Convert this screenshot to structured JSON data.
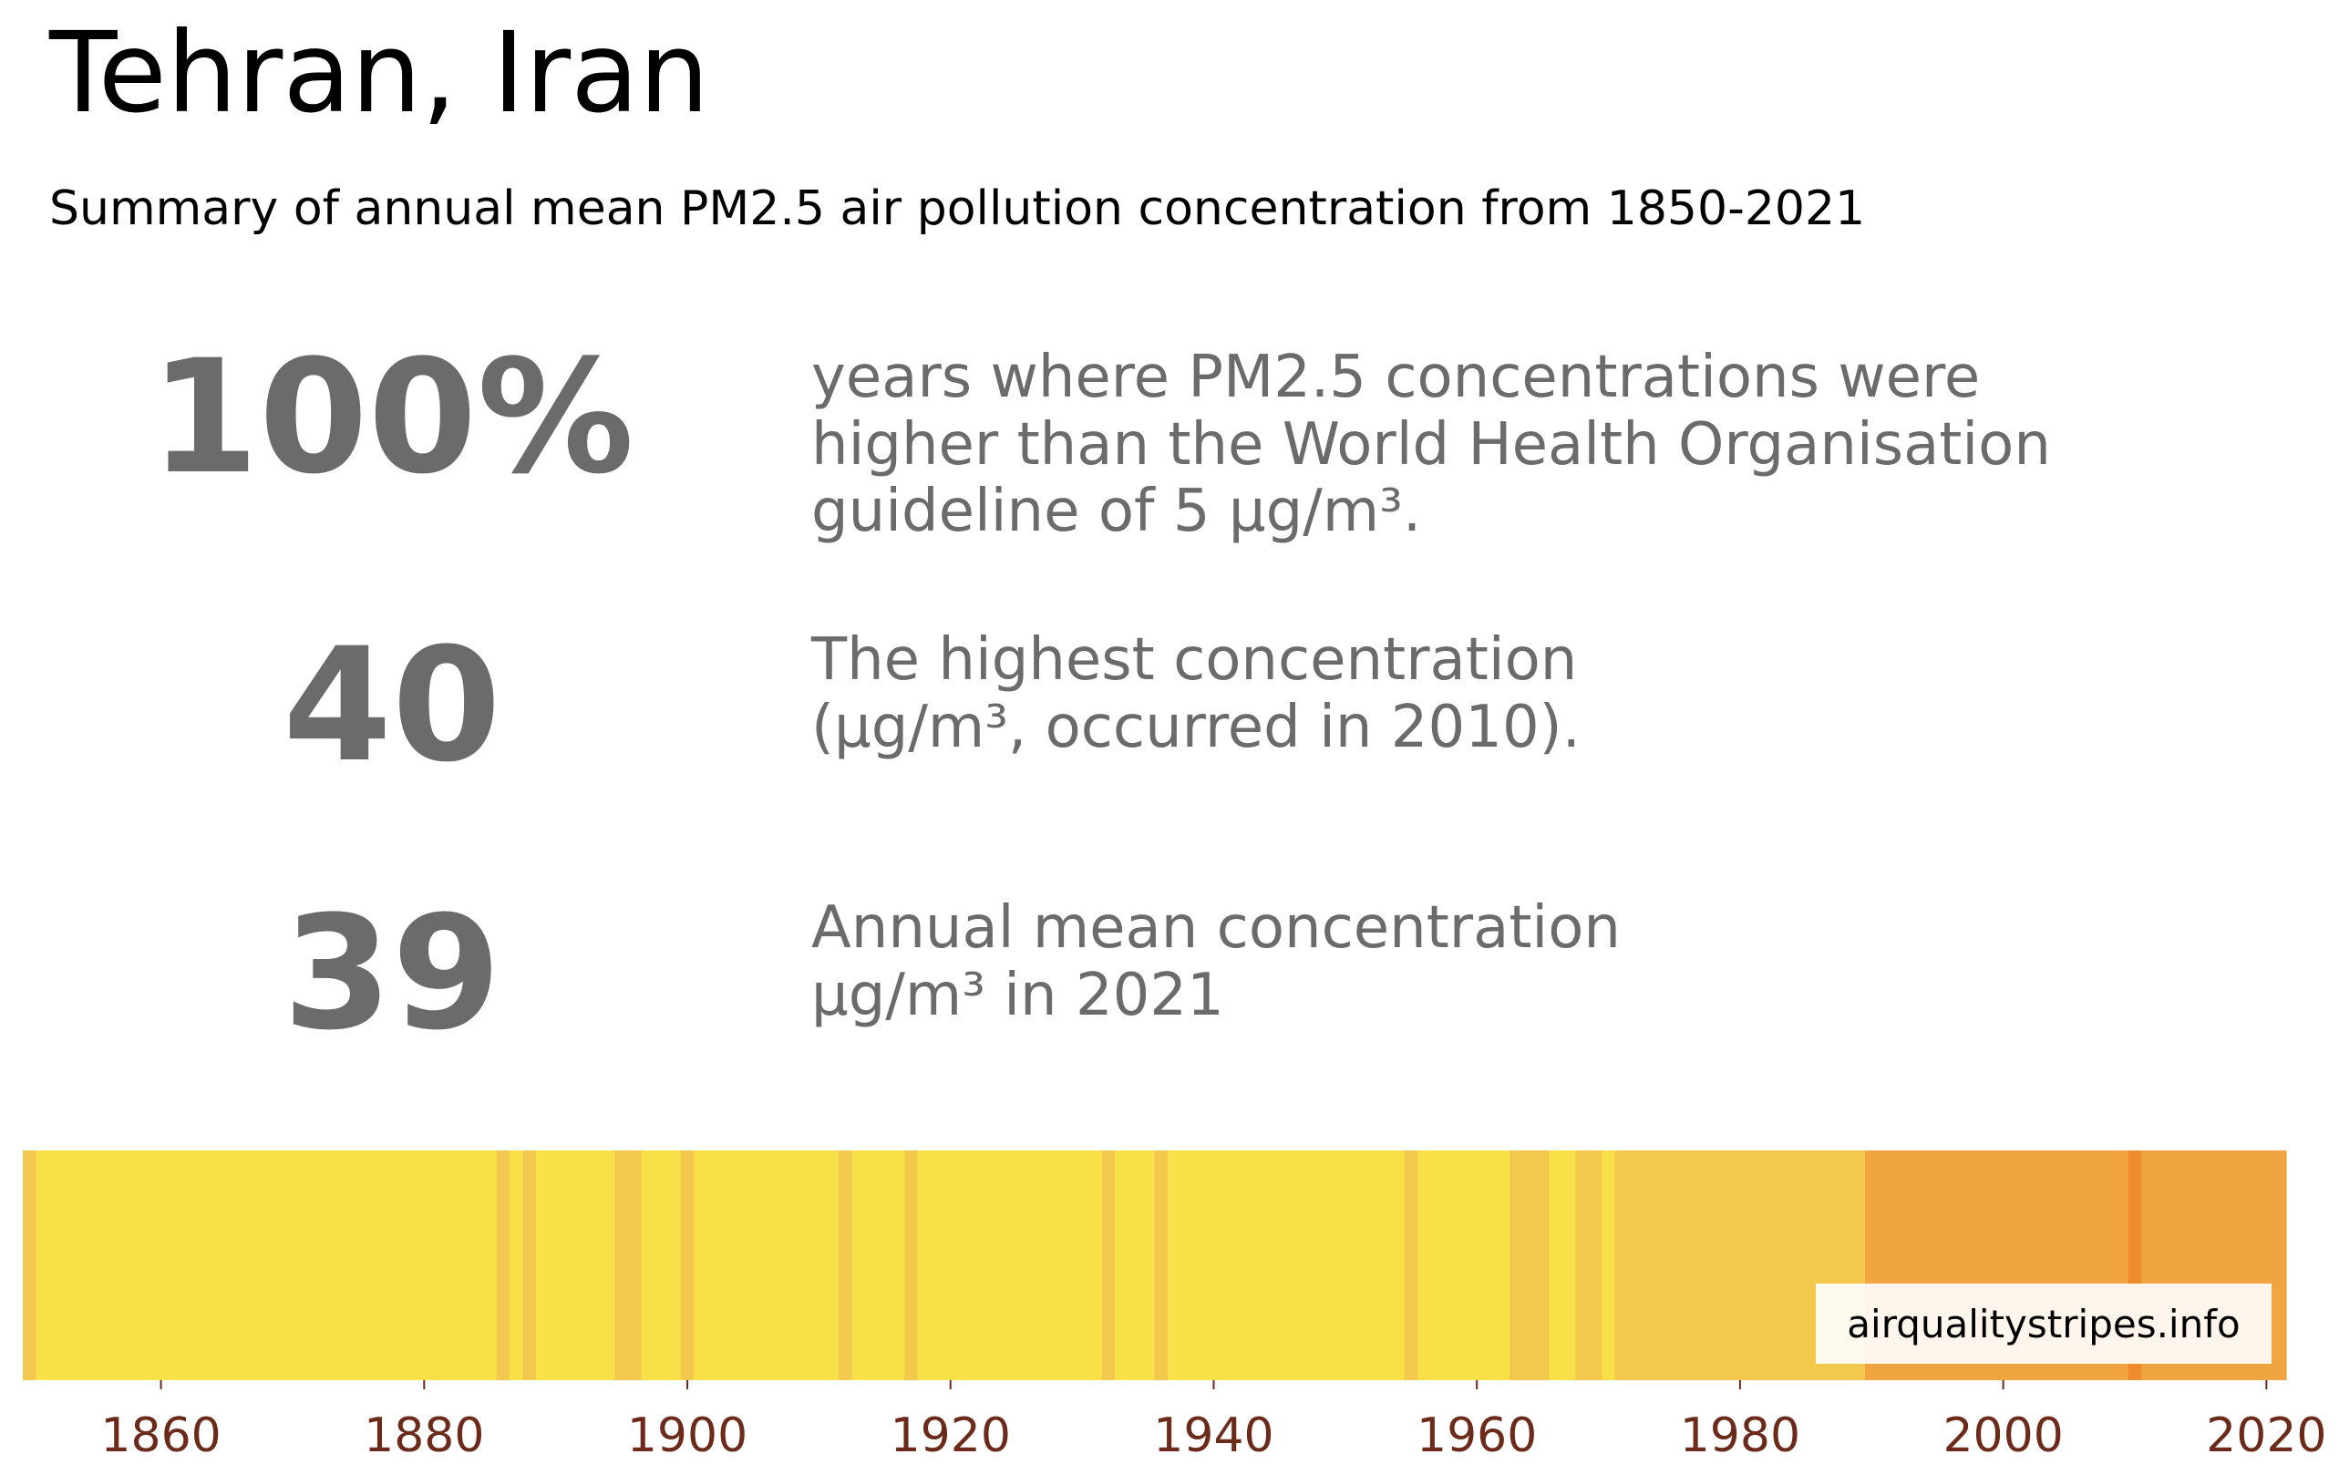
{
  "header": {
    "title": "Tehran, Iran",
    "subtitle": "Summary of annual mean PM2.5 air pollution concentration from 1850-2021"
  },
  "stats": [
    {
      "value": "100%",
      "lines": [
        "years where PM2.5 concentrations were",
        "higher than the World Health Organisation",
        "guideline of 5 µg/m³."
      ]
    },
    {
      "value": "40",
      "lines": [
        "The highest concentration",
        "(µg/m³, occurred in 2010)."
      ]
    },
    {
      "value": "39",
      "lines": [
        "Annual mean concentration",
        "µg/m³ in 2021"
      ]
    }
  ],
  "credit": "airqualitystripes.info",
  "colors": {
    "stat_text": "#6b6b6b",
    "tick_label": "#6b2a1a"
  },
  "chart_data": {
    "type": "heatmap",
    "x_range": [
      1850,
      2021
    ],
    "tick_labels": [
      "1860",
      "1880",
      "1900",
      "1920",
      "1940",
      "1960",
      "1980",
      "2000",
      "2020"
    ],
    "color_levels": [
      "#f8e048",
      "#f2c94c",
      "#f0a540",
      "#ee8c2c"
    ],
    "stripes": [
      {
        "from": 1850,
        "to": 1850,
        "level": 1
      },
      {
        "from": 1851,
        "to": 1885,
        "level": 0
      },
      {
        "from": 1886,
        "to": 1886,
        "level": 1
      },
      {
        "from": 1887,
        "to": 1887,
        "level": 0
      },
      {
        "from": 1888,
        "to": 1888,
        "level": 1
      },
      {
        "from": 1889,
        "to": 1894,
        "level": 0
      },
      {
        "from": 1895,
        "to": 1896,
        "level": 1
      },
      {
        "from": 1897,
        "to": 1899,
        "level": 0
      },
      {
        "from": 1900,
        "to": 1900,
        "level": 1
      },
      {
        "from": 1901,
        "to": 1911,
        "level": 0
      },
      {
        "from": 1912,
        "to": 1912,
        "level": 1
      },
      {
        "from": 1913,
        "to": 1916,
        "level": 0
      },
      {
        "from": 1917,
        "to": 1917,
        "level": 1
      },
      {
        "from": 1918,
        "to": 1931,
        "level": 0
      },
      {
        "from": 1932,
        "to": 1932,
        "level": 1
      },
      {
        "from": 1933,
        "to": 1935,
        "level": 0
      },
      {
        "from": 1936,
        "to": 1936,
        "level": 1
      },
      {
        "from": 1937,
        "to": 1954,
        "level": 0
      },
      {
        "from": 1955,
        "to": 1955,
        "level": 1
      },
      {
        "from": 1956,
        "to": 1962,
        "level": 0
      },
      {
        "from": 1963,
        "to": 1965,
        "level": 1
      },
      {
        "from": 1966,
        "to": 1967,
        "level": 0
      },
      {
        "from": 1968,
        "to": 1969,
        "level": 1
      },
      {
        "from": 1970,
        "to": 1970,
        "level": 0
      },
      {
        "from": 1971,
        "to": 1989,
        "level": 1
      },
      {
        "from": 1990,
        "to": 2009,
        "level": 2
      },
      {
        "from": 2010,
        "to": 2010,
        "level": 3
      },
      {
        "from": 2011,
        "to": 2021,
        "level": 2
      }
    ]
  }
}
